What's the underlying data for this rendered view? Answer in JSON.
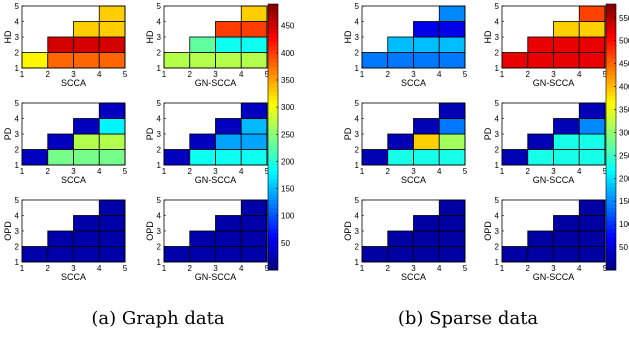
{
  "captions": [
    "(a) Graph data",
    "(b) Sparse data"
  ],
  "chart_data": [
    {
      "type": "heatmap",
      "group": "(a) Graph data",
      "x_ticks": [
        1,
        2,
        3,
        4,
        5
      ],
      "y_ticks": [
        1,
        2,
        3,
        4,
        5
      ],
      "colorbar": {
        "min": 0,
        "max": 490,
        "ticks": [
          50,
          100,
          150,
          200,
          250,
          300,
          350,
          400,
          450
        ]
      },
      "panels": [
        {
          "xlabel": "SCCA",
          "ylabel": "HD",
          "cells": [
            [
              1,
              1,
              310
            ],
            [
              2,
              1,
              380
            ],
            [
              3,
              1,
              380
            ],
            [
              4,
              1,
              380
            ],
            [
              2,
              2,
              450
            ],
            [
              3,
              2,
              450
            ],
            [
              4,
              2,
              450
            ],
            [
              3,
              3,
              330
            ],
            [
              4,
              3,
              330
            ],
            [
              4,
              4,
              330
            ]
          ]
        },
        {
          "xlabel": "GN-SCCA",
          "ylabel": "HD",
          "cells": [
            [
              1,
              1,
              270
            ],
            [
              2,
              1,
              270
            ],
            [
              3,
              1,
              270
            ],
            [
              4,
              1,
              270
            ],
            [
              2,
              2,
              230
            ],
            [
              3,
              2,
              190
            ],
            [
              4,
              2,
              190
            ],
            [
              3,
              3,
              400
            ],
            [
              4,
              3,
              400
            ],
            [
              4,
              4,
              330
            ]
          ]
        },
        {
          "xlabel": "SCCA",
          "ylabel": "PD",
          "cells": [
            [
              1,
              1,
              30
            ],
            [
              2,
              1,
              240
            ],
            [
              3,
              1,
              240
            ],
            [
              4,
              1,
              240
            ],
            [
              2,
              2,
              30
            ],
            [
              3,
              2,
              270
            ],
            [
              4,
              2,
              270
            ],
            [
              3,
              3,
              30
            ],
            [
              4,
              3,
              180
            ],
            [
              4,
              4,
              30
            ]
          ]
        },
        {
          "xlabel": "GN-SCCA",
          "ylabel": "PD",
          "cells": [
            [
              1,
              1,
              30
            ],
            [
              2,
              1,
              190
            ],
            [
              3,
              1,
              190
            ],
            [
              4,
              1,
              190
            ],
            [
              2,
              2,
              30
            ],
            [
              3,
              2,
              140
            ],
            [
              4,
              2,
              140
            ],
            [
              3,
              3,
              30
            ],
            [
              4,
              3,
              150
            ],
            [
              4,
              4,
              30
            ]
          ]
        },
        {
          "xlabel": "SCCA",
          "ylabel": "OPD",
          "cells": [
            [
              1,
              1,
              20
            ],
            [
              2,
              1,
              20
            ],
            [
              3,
              1,
              20
            ],
            [
              4,
              1,
              20
            ],
            [
              2,
              2,
              20
            ],
            [
              3,
              2,
              20
            ],
            [
              4,
              2,
              20
            ],
            [
              3,
              3,
              20
            ],
            [
              4,
              3,
              20
            ],
            [
              4,
              4,
              20
            ]
          ]
        },
        {
          "xlabel": "GN-SCCA",
          "ylabel": "OPD",
          "cells": [
            [
              1,
              1,
              20
            ],
            [
              2,
              1,
              20
            ],
            [
              3,
              1,
              20
            ],
            [
              4,
              1,
              20
            ],
            [
              2,
              2,
              20
            ],
            [
              3,
              2,
              20
            ],
            [
              4,
              2,
              20
            ],
            [
              3,
              3,
              20
            ],
            [
              4,
              3,
              20
            ],
            [
              4,
              4,
              20
            ]
          ]
        }
      ]
    },
    {
      "type": "heatmap",
      "group": "(b) Sparse data",
      "x_ticks": [
        1,
        2,
        3,
        4,
        5
      ],
      "y_ticks": [
        1,
        2,
        3,
        4,
        5
      ],
      "colorbar": {
        "min": 0,
        "max": 580,
        "ticks": [
          50,
          100,
          150,
          200,
          250,
          300,
          350,
          400,
          450,
          500,
          550
        ]
      },
      "panels": [
        {
          "xlabel": "SCCA",
          "ylabel": "HD",
          "cells": [
            [
              1,
              1,
              140
            ],
            [
              2,
              1,
              140
            ],
            [
              3,
              1,
              140
            ],
            [
              4,
              1,
              140
            ],
            [
              2,
              2,
              180
            ],
            [
              3,
              2,
              180
            ],
            [
              4,
              2,
              180
            ],
            [
              3,
              3,
              60
            ],
            [
              4,
              3,
              60
            ],
            [
              4,
              4,
              150
            ]
          ]
        },
        {
          "xlabel": "GN-SCCA",
          "ylabel": "HD",
          "cells": [
            [
              1,
              1,
              520
            ],
            [
              2,
              1,
              520
            ],
            [
              3,
              1,
              520
            ],
            [
              4,
              1,
              520
            ],
            [
              2,
              2,
              520
            ],
            [
              3,
              2,
              520
            ],
            [
              4,
              2,
              520
            ],
            [
              3,
              3,
              390
            ],
            [
              4,
              3,
              390
            ],
            [
              4,
              4,
              470
            ]
          ]
        },
        {
          "xlabel": "SCCA",
          "ylabel": "PD",
          "cells": [
            [
              1,
              1,
              30
            ],
            [
              2,
              1,
              230
            ],
            [
              3,
              1,
              230
            ],
            [
              4,
              1,
              230
            ],
            [
              2,
              2,
              30
            ],
            [
              3,
              2,
              390
            ],
            [
              4,
              2,
              310
            ],
            [
              3,
              3,
              30
            ],
            [
              4,
              3,
              140
            ],
            [
              4,
              4,
              30
            ]
          ]
        },
        {
          "xlabel": "GN-SCCA",
          "ylabel": "PD",
          "cells": [
            [
              1,
              1,
              30
            ],
            [
              2,
              1,
              230
            ],
            [
              3,
              1,
              230
            ],
            [
              4,
              1,
              230
            ],
            [
              2,
              2,
              30
            ],
            [
              3,
              2,
              230
            ],
            [
              4,
              2,
              230
            ],
            [
              3,
              3,
              30
            ],
            [
              4,
              3,
              150
            ],
            [
              4,
              4,
              30
            ]
          ]
        },
        {
          "xlabel": "SCCA",
          "ylabel": "OPD",
          "cells": [
            [
              1,
              1,
              20
            ],
            [
              2,
              1,
              20
            ],
            [
              3,
              1,
              20
            ],
            [
              4,
              1,
              20
            ],
            [
              2,
              2,
              20
            ],
            [
              3,
              2,
              20
            ],
            [
              4,
              2,
              20
            ],
            [
              3,
              3,
              20
            ],
            [
              4,
              3,
              20
            ],
            [
              4,
              4,
              20
            ]
          ]
        },
        {
          "xlabel": "GN-SCCA",
          "ylabel": "OPD",
          "cells": [
            [
              1,
              1,
              20
            ],
            [
              2,
              1,
              20
            ],
            [
              3,
              1,
              20
            ],
            [
              4,
              1,
              20
            ],
            [
              2,
              2,
              20
            ],
            [
              3,
              2,
              20
            ],
            [
              4,
              2,
              20
            ],
            [
              3,
              3,
              20
            ],
            [
              4,
              3,
              20
            ],
            [
              4,
              4,
              20
            ]
          ]
        }
      ]
    }
  ]
}
